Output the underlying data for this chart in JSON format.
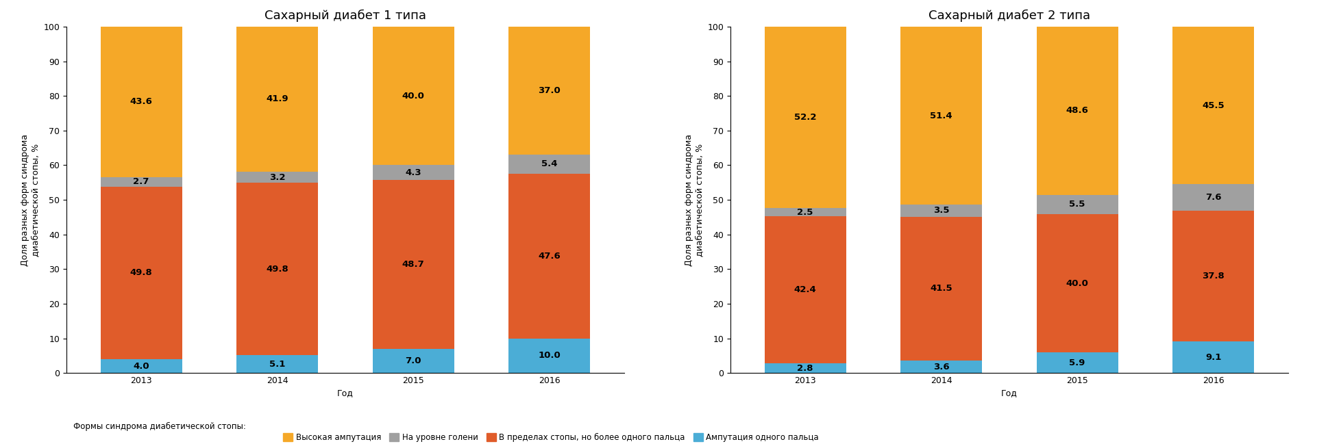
{
  "chart1_title": "Сахарный диабет 1 типа",
  "chart2_title": "Сахарный диабет 2 типа",
  "years": [
    "2013",
    "2014",
    "2015",
    "2016"
  ],
  "ylabel": "Доля разных форм синдрома\nдиабетической стопы, %",
  "xlabel": "Год",
  "legend_prefix": "Формы синдрома диабетической стопы:",
  "legend_labels": [
    "Высокая ампутация",
    "На уровне голени",
    "В пределах стопы, но более одного пальца",
    "Ампутация одного пальца"
  ],
  "colors": [
    "#F5A828",
    "#A0A0A0",
    "#E05C2A",
    "#4BADD6"
  ],
  "chart1_data": {
    "amputation_one_finger": [
      4.0,
      5.1,
      7.0,
      10.0
    ],
    "within_foot": [
      49.8,
      49.8,
      48.7,
      47.6
    ],
    "shin_level": [
      2.7,
      3.2,
      4.3,
      5.4
    ],
    "high_amputation": [
      43.6,
      41.9,
      40.0,
      37.0
    ]
  },
  "chart2_data": {
    "amputation_one_finger": [
      2.8,
      3.6,
      5.9,
      9.1
    ],
    "within_foot": [
      42.4,
      41.5,
      40.0,
      37.8
    ],
    "shin_level": [
      2.5,
      3.5,
      5.5,
      7.6
    ],
    "high_amputation": [
      52.2,
      51.4,
      48.6,
      45.5
    ]
  },
  "ylim": [
    0,
    100
  ],
  "yticks": [
    0,
    10,
    20,
    30,
    40,
    50,
    60,
    70,
    80,
    90,
    100
  ],
  "bar_width": 0.6,
  "background_color": "#FFFFFF",
  "title_fontsize": 13,
  "label_fontsize": 9,
  "tick_fontsize": 9,
  "legend_fontsize": 8.5,
  "value_fontsize": 9.5
}
